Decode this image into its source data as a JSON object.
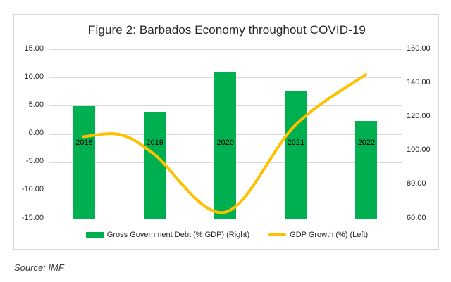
{
  "chart_data": {
    "type": "combo",
    "title": "Figure 2: Barbados Economy throughout COVID-19",
    "source_note": "Source: IMF",
    "categories": [
      "2018",
      "2019",
      "2020",
      "2021",
      "2022"
    ],
    "series": [
      {
        "name": "Gross Government Debt (% GDP) (Right)",
        "type": "bar",
        "axis": "right",
        "color": "#00B050",
        "values": [
          126.3,
          122.9,
          146.3,
          135.4,
          117.5
        ]
      },
      {
        "name": "GDP Growth (%) (Left)",
        "type": "line",
        "axis": "left",
        "color": "#FFC000",
        "smooth": true,
        "values": [
          -0.6,
          -3.7,
          -14.0,
          1.4,
          10.4
        ]
      }
    ],
    "left_axis": {
      "min": -15,
      "max": 15,
      "tick_labels": [
        "15.00",
        "10.00",
        "5.00",
        "0.00",
        "-5.00",
        "-10.00",
        "-15.00"
      ]
    },
    "right_axis": {
      "min": 60,
      "max": 160,
      "tick_labels": [
        "160.00",
        "140.00",
        "120.00",
        "100.00",
        "80.00",
        "60.00"
      ]
    },
    "grid": true,
    "legend_position": "bottom",
    "colors": {
      "gridline": "#d9d9d9",
      "frame_border": "#d9d9d9",
      "axis_line": "#bfbfbf",
      "text": "#262626"
    },
    "render_hints": {
      "line_shape_points": [
        {
          "after_index": 0,
          "x_frac": 0.52,
          "value": -0.25
        }
      ]
    }
  }
}
